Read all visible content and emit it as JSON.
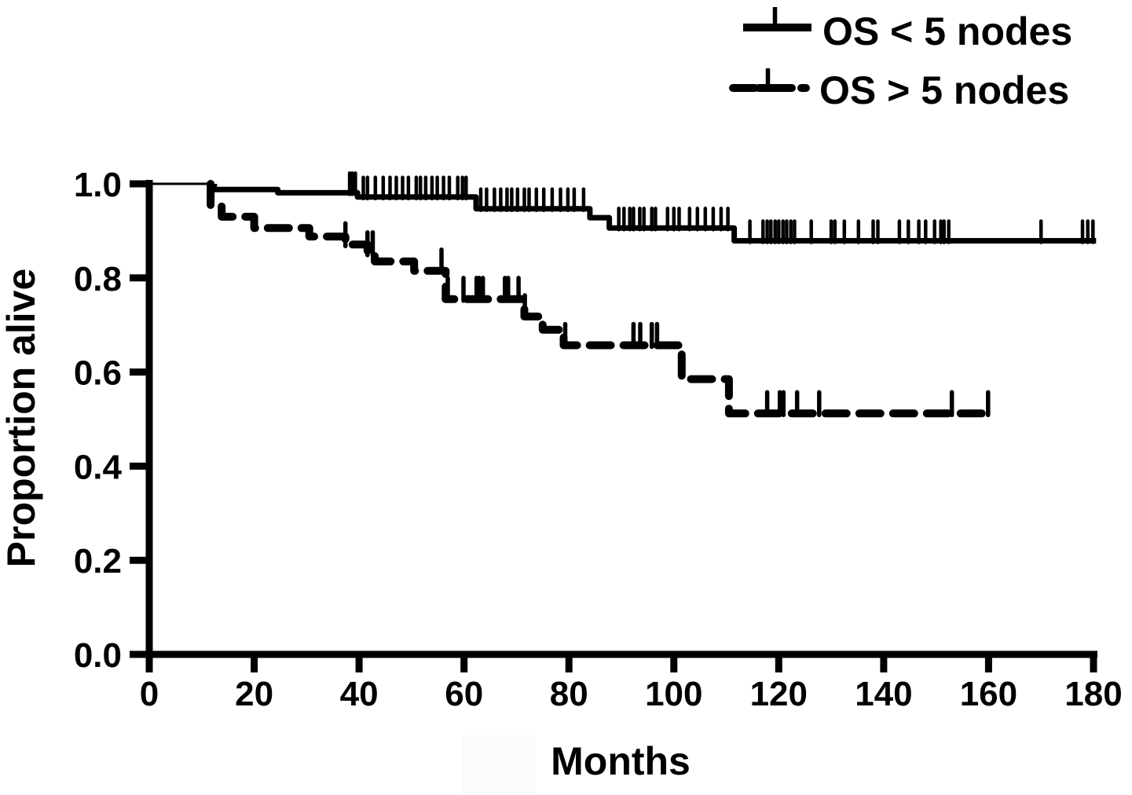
{
  "figure": {
    "background_color": "#ffffff",
    "curve_color": "#000000",
    "description": "Kaplan-Meier overall survival curves by nodal status"
  },
  "chart_data": {
    "type": "line",
    "subtype": "kaplan_meier_step",
    "title": "",
    "xlabel": "Months",
    "ylabel": "Proportion alive",
    "xlim": [
      0,
      180
    ],
    "ylim": [
      0.0,
      1.0
    ],
    "grid": false,
    "legend_position": "top-right",
    "xticks": [
      0,
      20,
      40,
      60,
      80,
      100,
      120,
      140,
      160,
      180
    ],
    "yticks": [
      {
        "label": "1.0",
        "value": 1.0
      },
      {
        "label": "0.8",
        "value": 0.8
      },
      {
        "label": "0.6",
        "value": 0.6
      },
      {
        "label": "0.4",
        "value": 0.4
      },
      {
        "label": "0.2",
        "value": 0.2
      },
      {
        "label": "0.0",
        "value": 0.0
      }
    ],
    "series": [
      {
        "name": "OS < 5 nodes",
        "line_style": "solid",
        "color": "#000000",
        "steps": [
          [
            0,
            1.0
          ],
          [
            12.4,
            0.988
          ],
          [
            24.5,
            0.981
          ],
          [
            39.7,
            0.972
          ],
          [
            62.3,
            0.947
          ],
          [
            84.0,
            0.928
          ],
          [
            87.7,
            0.906
          ],
          [
            111.5,
            0.879
          ]
        ],
        "end_month": 180.5,
        "censor_marks": [
          38.2,
          38.7,
          39.3,
          40.8,
          41.6,
          43.1,
          44.6,
          45.9,
          47.1,
          48.3,
          49.4,
          50.9,
          51.7,
          52.7,
          53.9,
          54.9,
          56.1,
          57.2,
          58.8,
          59.7,
          60.4,
          63.2,
          64.3,
          65.8,
          67.0,
          68.2,
          69.1,
          70.2,
          71.5,
          72.4,
          73.8,
          75.2,
          76.8,
          78.4,
          79.8,
          81.0,
          82.8,
          89.5,
          90.5,
          91.6,
          92.3,
          93.5,
          94.3,
          95.8,
          96.5,
          98.8,
          100.0,
          101.0,
          103.0,
          104.5,
          106.0,
          107.5,
          109.0,
          110.3,
          114.5,
          117.0,
          117.8,
          118.5,
          119.3,
          120.0,
          120.8,
          121.5,
          122.3,
          123.0,
          126.2,
          130.0,
          130.7,
          132.5,
          135.2,
          138.0,
          138.9,
          143.0,
          144.7,
          146.7,
          148.0,
          149.7,
          150.9,
          151.5,
          152.4,
          170.0,
          177.9,
          178.9,
          179.9
        ]
      },
      {
        "name": "OS > 5 nodes",
        "line_style": "dashed",
        "color": "#000000",
        "steps": [
          [
            0,
            1.0
          ],
          [
            11.7,
            0.952
          ],
          [
            13.8,
            0.93
          ],
          [
            20.0,
            0.906
          ],
          [
            30.5,
            0.888
          ],
          [
            37.4,
            0.871
          ],
          [
            41.6,
            0.852
          ],
          [
            43.0,
            0.835
          ],
          [
            50.5,
            0.815
          ],
          [
            56.5,
            0.755
          ],
          [
            71.5,
            0.718
          ],
          [
            75.0,
            0.69
          ],
          [
            79.0,
            0.657
          ],
          [
            101.5,
            0.585
          ],
          [
            110.5,
            0.512
          ]
        ],
        "end_month": 160.5,
        "censor_marks": [
          37.4,
          41.6,
          42.6,
          55.7,
          56.9,
          59.9,
          62.4,
          62.9,
          63.6,
          67.8,
          68.4,
          70.4,
          71.6,
          79.3,
          92.3,
          93.6,
          95.8,
          96.8,
          117.8,
          120.2,
          120.9,
          123.5,
          127.7,
          153.0,
          159.9
        ]
      }
    ]
  }
}
